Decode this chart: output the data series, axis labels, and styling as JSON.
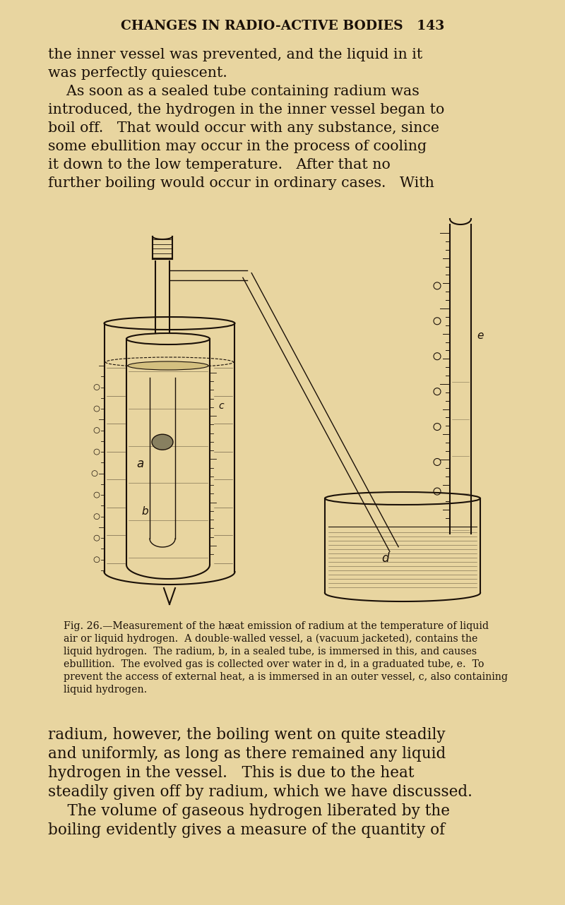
{
  "bg": "#e8d5a0",
  "tc": "#1a1008",
  "lc": "#1a1008",
  "fig_w": 8.0,
  "fig_h": 12.82,
  "dpi": 100,
  "header": "CHANGES IN RADIO-ACTIVE BODIES   143",
  "top_lines": [
    "the inner vessel was prevented, and the liquid in it",
    "was perfectly quiescent.",
    "    As soon as a sealed tube containing radium was",
    "introduced, the hydrogen in the inner vessel began to",
    "boil off.   That would occur with any substance, since",
    "some ebullition may occur in the process of cooling",
    "it down to the low temperature.   After that no",
    "further boiling would occur in ordinary cases.   With"
  ],
  "caption_lines": [
    "Fig. 26.—Measurement of the hæat emission of radium at the temperature of liquid",
    "air or liquid hydrogen.  A double-walled vessel, a (vacuum jacketed), contains the",
    "liquid hydrogen.  The radium, b, in a sealed tube, is immersed in this, and causes",
    "ebullition.  The evolved gas is collected over water in d, in a graduated tube, e.  To",
    "prevent the access of external heat, a is immersed in an outer vessel, c, also containing",
    "liquid hydrogen."
  ],
  "bottom_lines": [
    "radium, however, the boiling went on quite steadily",
    "and uniformly, as long as there remained any liquid",
    "hydrogen in the vessel.   This is due to the heat",
    "steadily given off by radium, which we have discussed.",
    "    The volume of gaseous hydrogen liberated by the",
    "boiling evidently gives a measure of the quantity of"
  ]
}
